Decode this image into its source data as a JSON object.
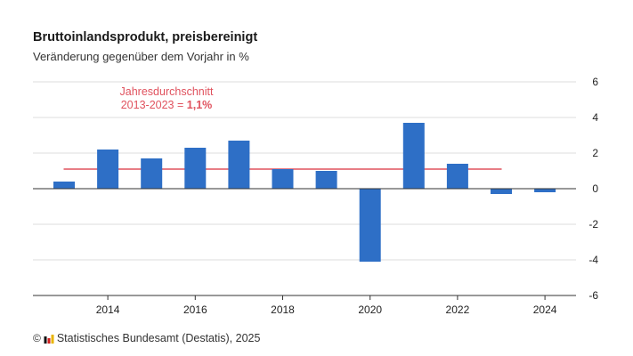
{
  "header": {
    "title": "Bruttoinlandsprodukt, preisbereinigt",
    "subtitle": "Veränderung gegenüber dem Vorjahr in %"
  },
  "footer": {
    "copyright_symbol": "©",
    "source": "Statistisches Bundesamt (Destatis), 2025"
  },
  "colors": {
    "bar": "#2E6FC6",
    "average_line": "#E0525E",
    "grid": "#dcdcdc",
    "axis": "#333333",
    "text": "#222222"
  },
  "chart_data": {
    "type": "bar",
    "title": "Bruttoinlandsprodukt, preisbereinigt",
    "subtitle": "Veränderung gegenüber dem Vorjahr in %",
    "categories": [
      2013,
      2014,
      2015,
      2016,
      2017,
      2018,
      2019,
      2020,
      2021,
      2022,
      2023,
      2024
    ],
    "values": [
      0.4,
      2.2,
      1.7,
      2.3,
      2.7,
      1.1,
      1.0,
      -4.1,
      3.7,
      1.4,
      -0.3,
      -0.2
    ],
    "x_tick_labels": [
      "2014",
      "2016",
      "2018",
      "2020",
      "2022",
      "2024"
    ],
    "y_ticks": [
      "6",
      "4",
      "2",
      "0",
      "-2",
      "-4",
      "-6"
    ],
    "ylim": [
      -6,
      6
    ],
    "y_axis_position": "right",
    "grid": true,
    "average": {
      "label_line1": "Jahresdurchschnitt",
      "label_line2_prefix": "2013-2023 = ",
      "label_value": "1,1%",
      "value": 1.1,
      "from": 2013,
      "to": 2023
    }
  }
}
